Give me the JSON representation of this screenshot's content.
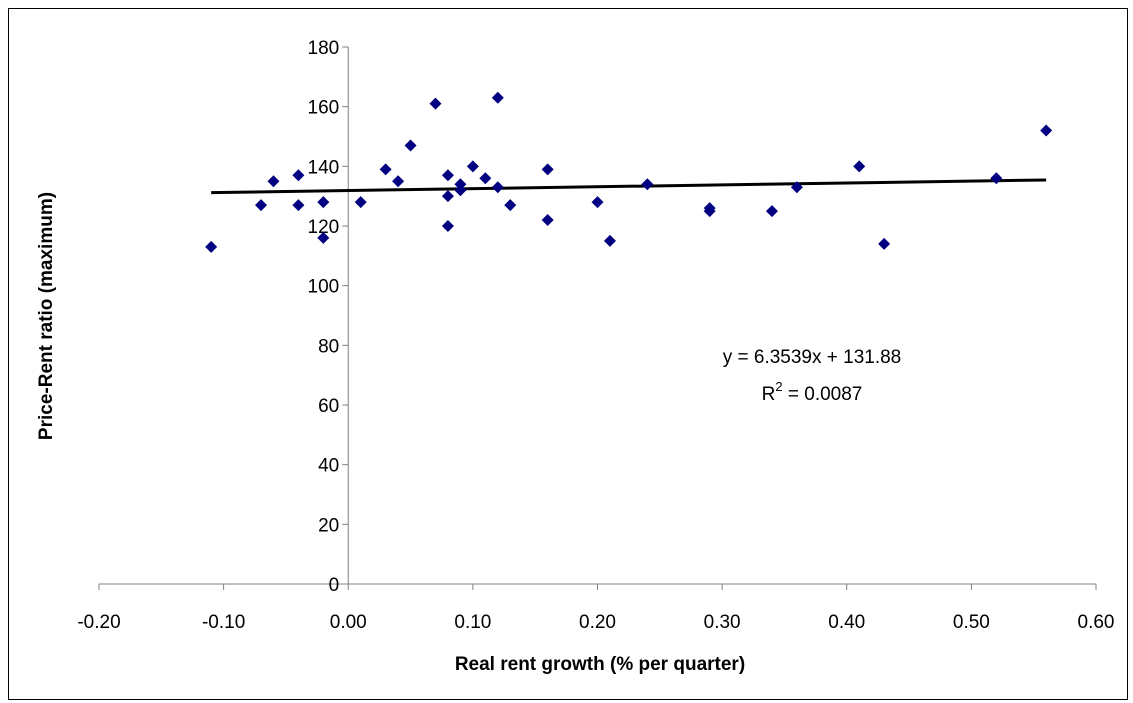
{
  "chart_data": {
    "type": "scatter",
    "title": "",
    "xlabel": "Real rent growth (% per quarter)",
    "ylabel": "Price-Rent ratio (maximum)",
    "xlim": [
      -0.2,
      0.6
    ],
    "ylim": [
      0,
      180
    ],
    "xticks": [
      "-0.20",
      "-0.10",
      "0.00",
      "0.10",
      "0.20",
      "0.30",
      "0.40",
      "0.50",
      "0.60"
    ],
    "yticks": [
      "0",
      "20",
      "40",
      "60",
      "80",
      "100",
      "120",
      "140",
      "160",
      "180"
    ],
    "grid": false,
    "legend": "none",
    "marker_color": "#000080",
    "trendline_color": "#000000",
    "points": [
      {
        "x": -0.11,
        "y": 113
      },
      {
        "x": -0.07,
        "y": 127
      },
      {
        "x": -0.06,
        "y": 135
      },
      {
        "x": -0.04,
        "y": 137
      },
      {
        "x": -0.04,
        "y": 127
      },
      {
        "x": -0.02,
        "y": 128
      },
      {
        "x": -0.02,
        "y": 116
      },
      {
        "x": 0.01,
        "y": 128
      },
      {
        "x": 0.03,
        "y": 139
      },
      {
        "x": 0.04,
        "y": 135
      },
      {
        "x": 0.05,
        "y": 147
      },
      {
        "x": 0.07,
        "y": 161
      },
      {
        "x": 0.08,
        "y": 137
      },
      {
        "x": 0.08,
        "y": 130
      },
      {
        "x": 0.08,
        "y": 120
      },
      {
        "x": 0.09,
        "y": 134
      },
      {
        "x": 0.09,
        "y": 132
      },
      {
        "x": 0.1,
        "y": 140
      },
      {
        "x": 0.11,
        "y": 136
      },
      {
        "x": 0.12,
        "y": 163
      },
      {
        "x": 0.12,
        "y": 133
      },
      {
        "x": 0.13,
        "y": 127
      },
      {
        "x": 0.16,
        "y": 139
      },
      {
        "x": 0.16,
        "y": 122
      },
      {
        "x": 0.2,
        "y": 128
      },
      {
        "x": 0.21,
        "y": 115
      },
      {
        "x": 0.24,
        "y": 134
      },
      {
        "x": 0.29,
        "y": 126
      },
      {
        "x": 0.29,
        "y": 125
      },
      {
        "x": 0.34,
        "y": 125
      },
      {
        "x": 0.36,
        "y": 133
      },
      {
        "x": 0.41,
        "y": 140
      },
      {
        "x": 0.43,
        "y": 114
      },
      {
        "x": 0.52,
        "y": 136
      },
      {
        "x": 0.56,
        "y": 152
      }
    ],
    "trendline": {
      "slope": 6.3539,
      "intercept": 131.88,
      "x_range": [
        -0.11,
        0.56
      ],
      "equation_label": "y = 6.3539x + 131.88",
      "r2_prefix": "R",
      "r2_superscript": "2",
      "r2_suffix": " = 0.0087"
    }
  }
}
